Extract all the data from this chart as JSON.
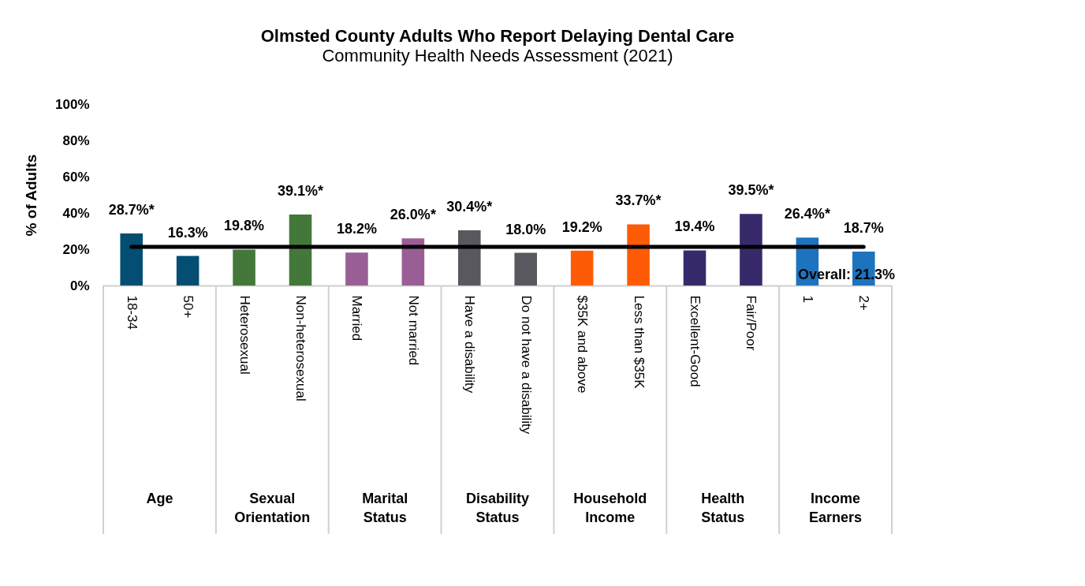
{
  "chart_data": {
    "type": "bar",
    "title": "Olmsted County Adults Who Report Delaying Dental Care",
    "subtitle": "Community Health Needs Assessment (2021)",
    "ylabel": "% of Adults",
    "categories": [
      "18-34",
      "50+",
      "Heterosexual",
      "Non-heterosexual",
      "Married",
      "Not married",
      "Have a disability",
      "Do not have a disability",
      "$35K and above",
      "Less than $35K",
      "Excellent-Good",
      "Fair/Poor",
      "1",
      "2+"
    ],
    "values": [
      28.7,
      16.3,
      19.8,
      39.1,
      18.2,
      26.0,
      30.4,
      18.0,
      19.2,
      33.7,
      19.4,
      39.5,
      26.4,
      18.7
    ],
    "colors": [
      "#034e72",
      "#034e72",
      "#43783a",
      "#43783a",
      "#9a5e96",
      "#9a5e96",
      "#58585e",
      "#58585e",
      "#fd5b05",
      "#fd5b05",
      "#382a6a",
      "#382a6a",
      "#1e73be",
      "#1e73be"
    ],
    "value_labels": [
      "28.7%*",
      "16.3%",
      "19.8%",
      "39.1%*",
      "18.2%",
      "26.0%*",
      "30.4%*",
      "18.0%",
      "19.2%",
      "33.7%*",
      "19.4%",
      "39.5%*",
      "26.4%*",
      "18.7%"
    ],
    "ylim": [
      0,
      100
    ],
    "yticks": [
      {
        "value": 0,
        "label": "0%"
      },
      {
        "value": 20,
        "label": "20%"
      },
      {
        "value": 40,
        "label": "40%"
      },
      {
        "value": 60,
        "label": "60%"
      },
      {
        "value": 80,
        "label": "80%"
      },
      {
        "value": 100,
        "label": "100%"
      }
    ],
    "ref_lines": [
      {
        "axis": "y",
        "value": 21.3,
        "label": "Overall: 21.3%",
        "color": "#000000"
      }
    ],
    "annotations": [
      "Age",
      "Sexual Orientation",
      "Marital Status",
      "Disability Status",
      "Household Income",
      "Health Status",
      "Income Earners"
    ],
    "grid": false,
    "legend": false
  }
}
